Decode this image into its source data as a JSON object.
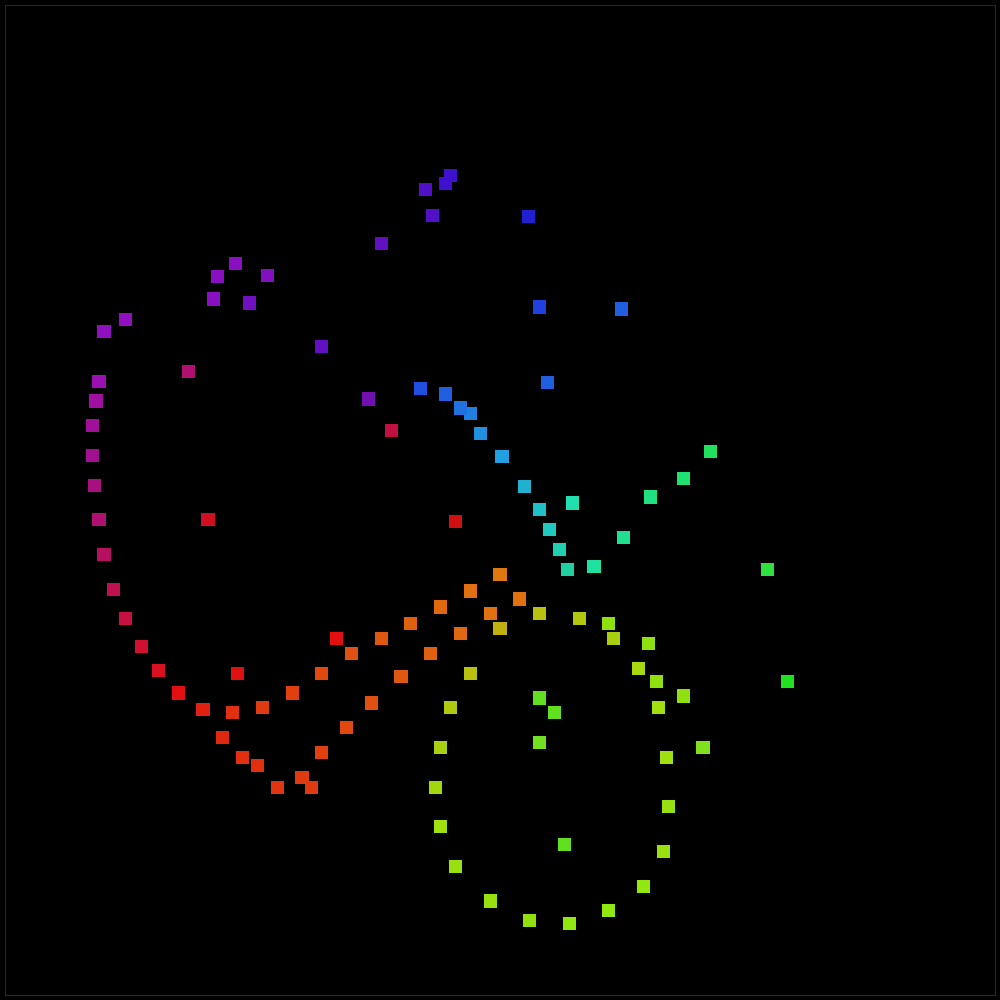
{
  "chart_data": {
    "type": "scatter",
    "marker": "square",
    "tick_labels": false,
    "grid": false,
    "xlim": [
      0,
      1000
    ],
    "ylim": [
      1000,
      0
    ],
    "xticks": [],
    "yticks": [],
    "x": [
      100,
      122,
      95,
      92,
      88,
      88,
      90,
      95,
      100,
      110,
      122,
      138,
      155,
      175,
      200,
      230,
      260,
      290,
      320,
      350,
      380,
      410,
      440,
      470,
      500,
      520,
      490,
      460,
      430,
      400,
      370,
      345,
      320,
      300,
      275,
      240,
      220,
      255,
      310,
      500,
      540,
      580,
      615,
      640,
      660,
      668,
      670,
      665,
      645,
      610,
      570,
      530,
      490,
      455,
      440,
      435,
      440,
      450,
      470,
      540,
      555,
      540,
      565,
      610,
      650,
      658,
      685,
      705,
      790,
      770,
      713,
      685,
      652,
      625,
      595,
      573,
      568,
      560,
      550,
      540,
      525,
      502,
      480,
      470,
      460,
      445,
      420,
      548,
      540,
      623,
      529,
      450,
      445,
      425,
      432,
      380,
      320,
      367,
      265,
      233,
      215,
      211,
      247,
      185,
      390,
      205,
      455,
      335,
      235
    ],
    "y": [
      330,
      318,
      380,
      400,
      425,
      455,
      485,
      520,
      555,
      590,
      620,
      648,
      672,
      695,
      712,
      715,
      710,
      695,
      675,
      655,
      640,
      625,
      608,
      592,
      575,
      600,
      615,
      635,
      655,
      678,
      705,
      730,
      755,
      780,
      790,
      760,
      740,
      768,
      790,
      630,
      615,
      620,
      640,
      670,
      710,
      760,
      810,
      855,
      890,
      915,
      928,
      925,
      905,
      870,
      830,
      790,
      750,
      710,
      675,
      700,
      715,
      745,
      848,
      625,
      645,
      683,
      698,
      750,
      683,
      570,
      451,
      478,
      497,
      538,
      567,
      503,
      570,
      550,
      530,
      510,
      486,
      456,
      433,
      413,
      407,
      393,
      387,
      381,
      305,
      307,
      214,
      172,
      180,
      186,
      213,
      241,
      345,
      398,
      273,
      261,
      274,
      297,
      301,
      370,
      430,
      520,
      522,
      640,
      675
    ],
    "colors": [
      "#9010c0",
      "#9010c0",
      "#9a10b0",
      "#a010a0",
      "#a01098",
      "#a01090",
      "#a81080",
      "#b01070",
      "#b81060",
      "#c01050",
      "#c81040",
      "#d01030",
      "#d81020",
      "#e01010",
      "#e02010",
      "#e03010",
      "#e03a10",
      "#e04010",
      "#e04810",
      "#e05010",
      "#e05810",
      "#e06010",
      "#e06810",
      "#e07010",
      "#e07810",
      "#e07010",
      "#e07010",
      "#e06810",
      "#e06010",
      "#e05810",
      "#e05010",
      "#e04810",
      "#e04010",
      "#e03a10",
      "#e03510",
      "#e03010",
      "#e02810",
      "#e03010",
      "#e03a10",
      "#c0b010",
      "#b8c010",
      "#b0c810",
      "#a8d010",
      "#a8d810",
      "#a0e010",
      "#a0e010",
      "#98e010",
      "#98e010",
      "#90e810",
      "#90e810",
      "#90e810",
      "#90e010",
      "#98e010",
      "#98e010",
      "#a0e010",
      "#a0d810",
      "#a8d010",
      "#b0c810",
      "#b8c010",
      "#60e020",
      "#60e020",
      "#70e020",
      "#60e020",
      "#90e010",
      "#90e010",
      "#90e010",
      "#90e010",
      "#80e020",
      "#20e020",
      "#30e040",
      "#20e060",
      "#20e070",
      "#20e080",
      "#20e090",
      "#20e0a0",
      "#20e0b0",
      "#20d0a0",
      "#20d0b0",
      "#20c8c0",
      "#20c0c8",
      "#20b0d0",
      "#20a0e0",
      "#2090e0",
      "#2080e0",
      "#2070e0",
      "#2060e0",
      "#2050e0",
      "#2060e0",
      "#2040e0",
      "#2060e0",
      "#2020d0",
      "#4010d0",
      "#4010d0",
      "#5010c8",
      "#5010c8",
      "#6010c0",
      "#6010c0",
      "#7010b0",
      "#8010c0",
      "#8810c0",
      "#8810c0",
      "#8810c0",
      "#7010c0",
      "#b01070",
      "#c01040",
      "#d01020",
      "#d01010",
      "#e01010",
      "#e01010"
    ]
  }
}
